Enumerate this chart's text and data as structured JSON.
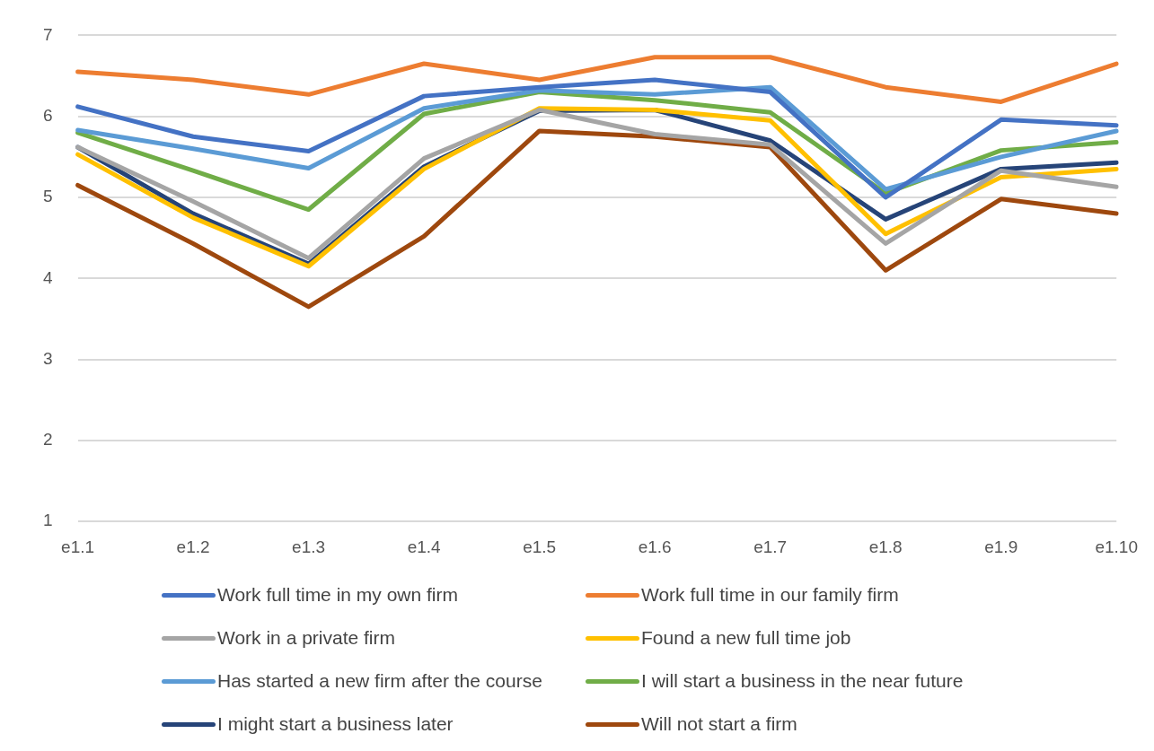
{
  "chart_data": {
    "type": "line",
    "categories": [
      "e1.1",
      "e1.2",
      "e1.3",
      "e1.4",
      "e1.5",
      "e1.6",
      "e1.7",
      "e1.8",
      "e1.9",
      "e1.10"
    ],
    "ylim": [
      1,
      7
    ],
    "yticks": [
      1,
      2,
      3,
      4,
      5,
      6,
      7
    ],
    "grid": "y",
    "legend": "bottom",
    "marker": "none",
    "series": [
      {
        "name": "Work full time in my own firm",
        "color": "#4472c4",
        "values": [
          6.12,
          5.75,
          5.57,
          6.25,
          6.36,
          6.45,
          6.3,
          5.0,
          5.96,
          5.89
        ]
      },
      {
        "name": "Work full time in our family firm",
        "color": "#ed7d31",
        "values": [
          6.55,
          6.45,
          6.27,
          6.65,
          6.45,
          6.73,
          6.73,
          6.36,
          6.18,
          6.65
        ]
      },
      {
        "name": "Work in a private firm",
        "color": "#a5a5a5",
        "values": [
          5.62,
          4.95,
          4.25,
          5.48,
          6.08,
          5.78,
          5.65,
          4.43,
          5.33,
          5.13
        ]
      },
      {
        "name": "Found a new full time job",
        "color": "#ffc000",
        "values": [
          5.53,
          4.75,
          4.15,
          5.35,
          6.1,
          6.08,
          5.95,
          4.55,
          5.25,
          5.35
        ]
      },
      {
        "name": "Has started a new firm after the course",
        "color": "#5b9bd5",
        "values": [
          5.83,
          5.6,
          5.36,
          6.1,
          6.32,
          6.27,
          6.36,
          5.1,
          5.5,
          5.82
        ]
      },
      {
        "name": "I will start a business in the near future",
        "color": "#70ad47",
        "values": [
          5.8,
          5.33,
          4.85,
          6.03,
          6.3,
          6.2,
          6.05,
          5.05,
          5.58,
          5.68
        ]
      },
      {
        "name": "I might start a business later",
        "color": "#264478",
        "values": [
          5.62,
          4.8,
          4.18,
          5.38,
          6.07,
          6.08,
          5.7,
          4.73,
          5.35,
          5.43
        ]
      },
      {
        "name": "Will not start a firm",
        "color": "#9e480e",
        "values": [
          5.15,
          4.43,
          3.65,
          4.52,
          5.82,
          5.75,
          5.62,
          4.1,
          4.98,
          4.8
        ]
      }
    ]
  }
}
